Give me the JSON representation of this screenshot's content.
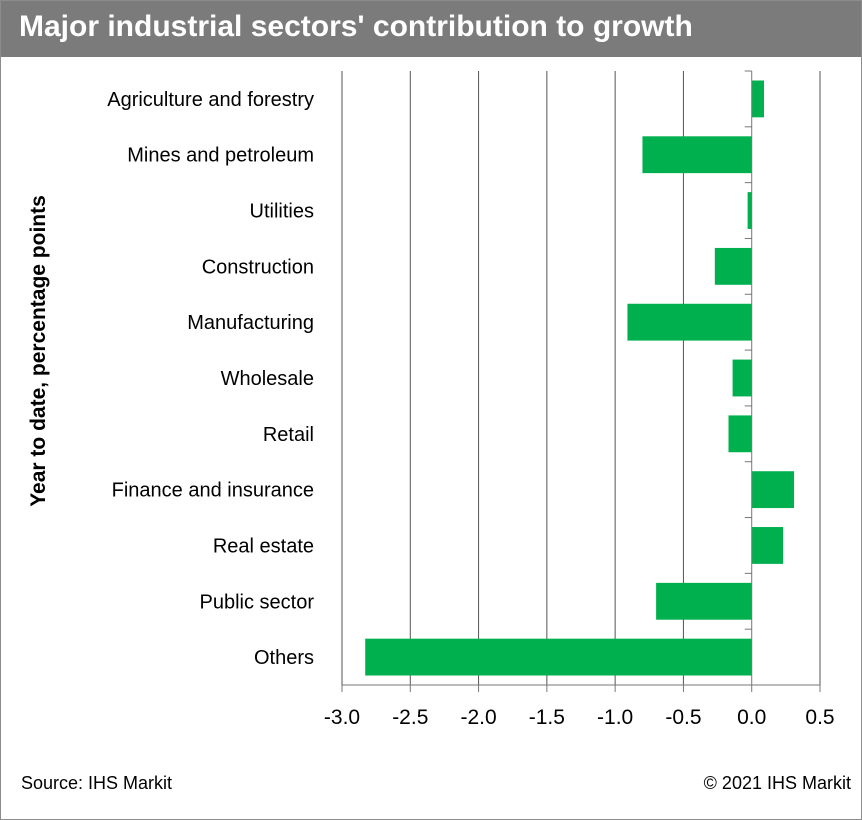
{
  "title": "Major industrial sectors' contribution to growth",
  "source": "Source: IHS Markit",
  "copyright": "© 2021 IHS Markit",
  "colors": {
    "bar": "#00b04f",
    "header": "#7b7b7b",
    "grid": "#555555"
  },
  "chart_data": {
    "type": "bar",
    "orientation": "horizontal",
    "title": "Major industrial sectors' contribution to growth",
    "ylabel": "Year to date, percentage points",
    "xlabel": "",
    "categories": [
      "Agriculture and forestry",
      "Mines and petroleum",
      "Utilities",
      "Construction",
      "Manufacturing",
      "Wholesale",
      "Retail",
      "Finance and insurance",
      "Real estate",
      "Public sector",
      "Others"
    ],
    "values": [
      0.09,
      -0.8,
      -0.03,
      -0.27,
      -0.91,
      -0.14,
      -0.17,
      0.31,
      0.23,
      -0.7,
      -2.83
    ],
    "xlim": [
      -3.0,
      0.5
    ],
    "xticks": [
      -3.0,
      -2.5,
      -2.0,
      -1.5,
      -1.0,
      -0.5,
      0.0,
      0.5
    ],
    "xtick_labels": [
      "-3.0",
      "-2.5",
      "-2.0",
      "-1.5",
      "-1.0",
      "-0.5",
      "0.0",
      "0.5"
    ],
    "grid": "vertical",
    "legend": "none"
  }
}
